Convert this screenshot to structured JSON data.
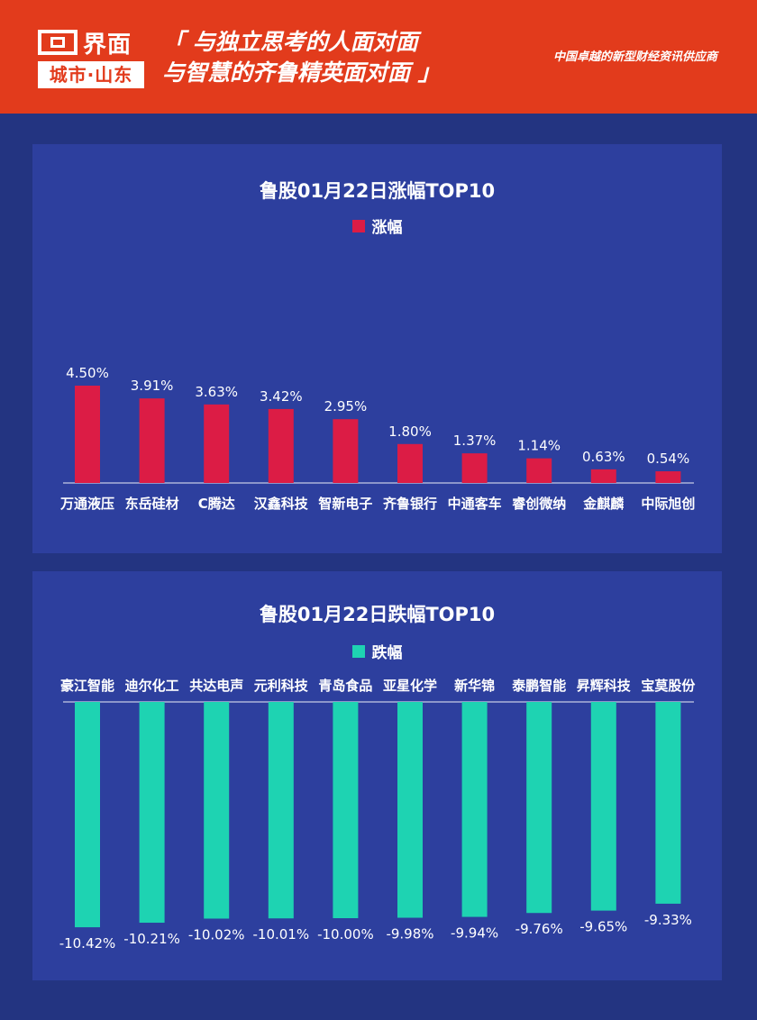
{
  "header": {
    "brand": "界面",
    "city": "城市·山东",
    "slogan_line1": "「 与独立思考的人面对面",
    "slogan_line2": "与智慧的齐鲁精英面对面 」",
    "tagline": "中国卓越的新型财经资讯供应商"
  },
  "colors": {
    "header_bg": "#e23b1c",
    "page_bg": "#233481",
    "panel_bg": "#2d3f9e",
    "gain_bar": "#dc1c45",
    "loss_bar": "#1ed3b2"
  },
  "chart_data": [
    {
      "type": "bar",
      "title": "鲁股01月22日涨幅TOP10",
      "legend": "涨幅",
      "categories": [
        "万通液压",
        "东岳硅材",
        "C腾达",
        "汉鑫科技",
        "智新电子",
        "齐鲁银行",
        "中通客车",
        "睿创微纳",
        "金麒麟",
        "中际旭创"
      ],
      "values": [
        4.5,
        3.91,
        3.63,
        3.42,
        2.95,
        1.8,
        1.37,
        1.14,
        0.63,
        0.54
      ],
      "value_labels": [
        "4.50%",
        "3.91%",
        "3.63%",
        "3.42%",
        "2.95%",
        "1.80%",
        "1.37%",
        "1.14%",
        "0.63%",
        "0.54%"
      ],
      "unit": "%",
      "grid": false
    },
    {
      "type": "bar",
      "title": "鲁股01月22日跌幅TOP10",
      "legend": "跌幅",
      "categories": [
        "豪江智能",
        "迪尔化工",
        "共达电声",
        "元利科技",
        "青岛食品",
        "亚星化学",
        "新华锦",
        "泰鹏智能",
        "昇辉科技",
        "宝莫股份"
      ],
      "values": [
        -10.42,
        -10.21,
        -10.02,
        -10.01,
        -10.0,
        -9.98,
        -9.94,
        -9.76,
        -9.65,
        -9.33
      ],
      "value_labels": [
        "-10.42%",
        "-10.21%",
        "-10.02%",
        "-10.01%",
        "-10.00%",
        "-9.98%",
        "-9.94%",
        "-9.76%",
        "-9.65%",
        "-9.33%"
      ],
      "unit": "%",
      "grid": false
    }
  ]
}
